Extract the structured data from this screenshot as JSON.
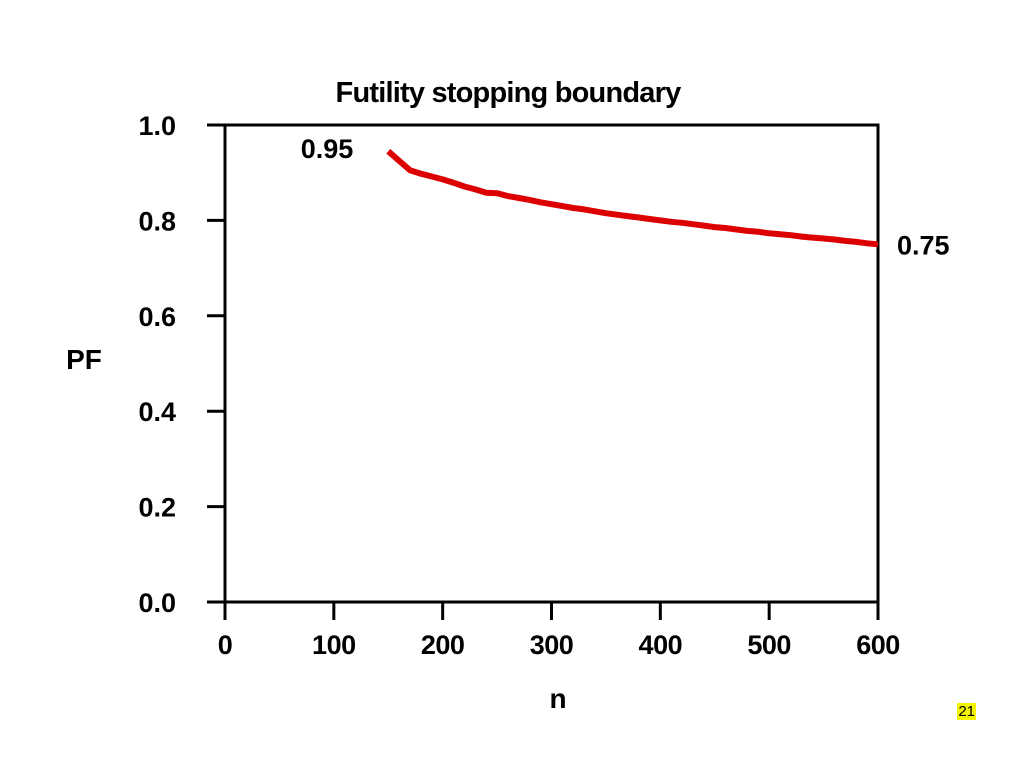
{
  "slide": {
    "page_number": "21",
    "page_number_color": "#f4f400"
  },
  "chart_data": {
    "type": "line",
    "title": "Futility stopping boundary",
    "xlabel": "n",
    "ylabel": "PF",
    "xlim": [
      0,
      600
    ],
    "ylim": [
      0.0,
      1.0
    ],
    "x_ticks": [
      0,
      100,
      200,
      300,
      400,
      500,
      600
    ],
    "x_tick_labels": [
      "0",
      "100",
      "200",
      "300",
      "400",
      "500",
      "600"
    ],
    "y_ticks": [
      0.0,
      0.2,
      0.4,
      0.6,
      0.8,
      1.0
    ],
    "y_tick_labels": [
      "0.0",
      "0.2",
      "0.4",
      "0.6",
      "0.8",
      "1.0"
    ],
    "grid": false,
    "series": [
      {
        "color": "#dd0000",
        "x": [
          150,
          155,
          160,
          165,
          170,
          180,
          190,
          200,
          210,
          220,
          230,
          240,
          250,
          260,
          270,
          280,
          290,
          300,
          310,
          320,
          330,
          340,
          350,
          360,
          370,
          380,
          390,
          400,
          410,
          420,
          430,
          440,
          450,
          460,
          470,
          480,
          490,
          500,
          510,
          520,
          530,
          540,
          550,
          560,
          570,
          580,
          590,
          600
        ],
        "y": [
          0.945,
          0.935,
          0.925,
          0.915,
          0.905,
          0.898,
          0.892,
          0.886,
          0.879,
          0.871,
          0.865,
          0.858,
          0.857,
          0.851,
          0.847,
          0.843,
          0.838,
          0.834,
          0.83,
          0.826,
          0.823,
          0.819,
          0.815,
          0.812,
          0.809,
          0.806,
          0.803,
          0.8,
          0.797,
          0.795,
          0.792,
          0.789,
          0.786,
          0.784,
          0.781,
          0.778,
          0.776,
          0.773,
          0.771,
          0.769,
          0.766,
          0.764,
          0.762,
          0.76,
          0.757,
          0.755,
          0.752,
          0.75
        ]
      }
    ],
    "annotations": [
      {
        "text": "0.95",
        "x": 150,
        "y": 0.95,
        "anchor": "left-of-start"
      },
      {
        "text": "0.75",
        "x": 600,
        "y": 0.75,
        "anchor": "right-of-end"
      }
    ]
  }
}
